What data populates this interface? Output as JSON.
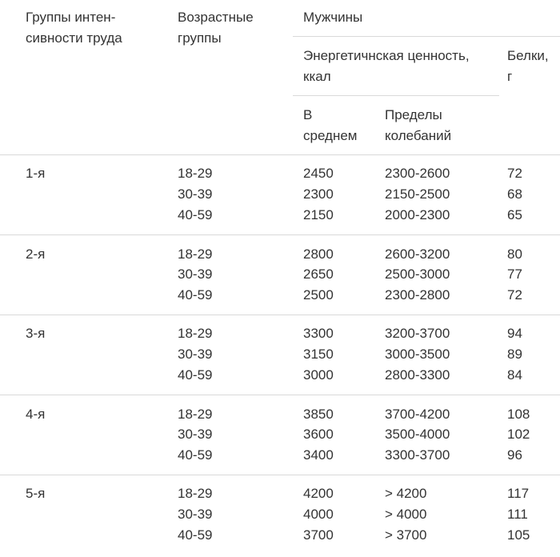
{
  "header": {
    "col_group": [
      "Группы интен-",
      "сивности труда"
    ],
    "col_age": [
      "Возрастные",
      "группы"
    ],
    "col_men": "Мужчины",
    "col_energy": [
      "Энергетичнская ценность,",
      "ккал"
    ],
    "col_protein": [
      "Белки,",
      "г"
    ],
    "col_avg": [
      "В",
      "среднем"
    ],
    "col_range": [
      "Пределы",
      "колебаний"
    ]
  },
  "rows": [
    {
      "group": "1-я",
      "ages": [
        "18-29",
        "30-39",
        "40-59"
      ],
      "avg": [
        "2450",
        "2300",
        "2150"
      ],
      "range": [
        "2300-2600",
        "2150-2500",
        "2000-2300"
      ],
      "protein": [
        "72",
        "68",
        "65"
      ]
    },
    {
      "group": "2-я",
      "ages": [
        "18-29",
        "30-39",
        "40-59"
      ],
      "avg": [
        "2800",
        "2650",
        "2500"
      ],
      "range": [
        "2600-3200",
        "2500-3000",
        "2300-2800"
      ],
      "protein": [
        "80",
        "77",
        "72"
      ]
    },
    {
      "group": "3-я",
      "ages": [
        "18-29",
        "30-39",
        "40-59"
      ],
      "avg": [
        "3300",
        "3150",
        "3000"
      ],
      "range": [
        "3200-3700",
        "3000-3500",
        "2800-3300"
      ],
      "protein": [
        "94",
        "89",
        "84"
      ]
    },
    {
      "group": "4-я",
      "ages": [
        "18-29",
        "30-39",
        "40-59"
      ],
      "avg": [
        "3850",
        "3600",
        "3400"
      ],
      "range": [
        "3700-4200",
        "3500-4000",
        "3300-3700"
      ],
      "protein": [
        "108",
        "102",
        "96"
      ]
    },
    {
      "group": "5-я",
      "ages": [
        "18-29",
        "30-39",
        "40-59"
      ],
      "avg": [
        "4200",
        "4000",
        "3700"
      ],
      "range": [
        "> 4200",
        "> 4000",
        "> 3700"
      ],
      "protein": [
        "117",
        "111",
        "105"
      ]
    }
  ]
}
